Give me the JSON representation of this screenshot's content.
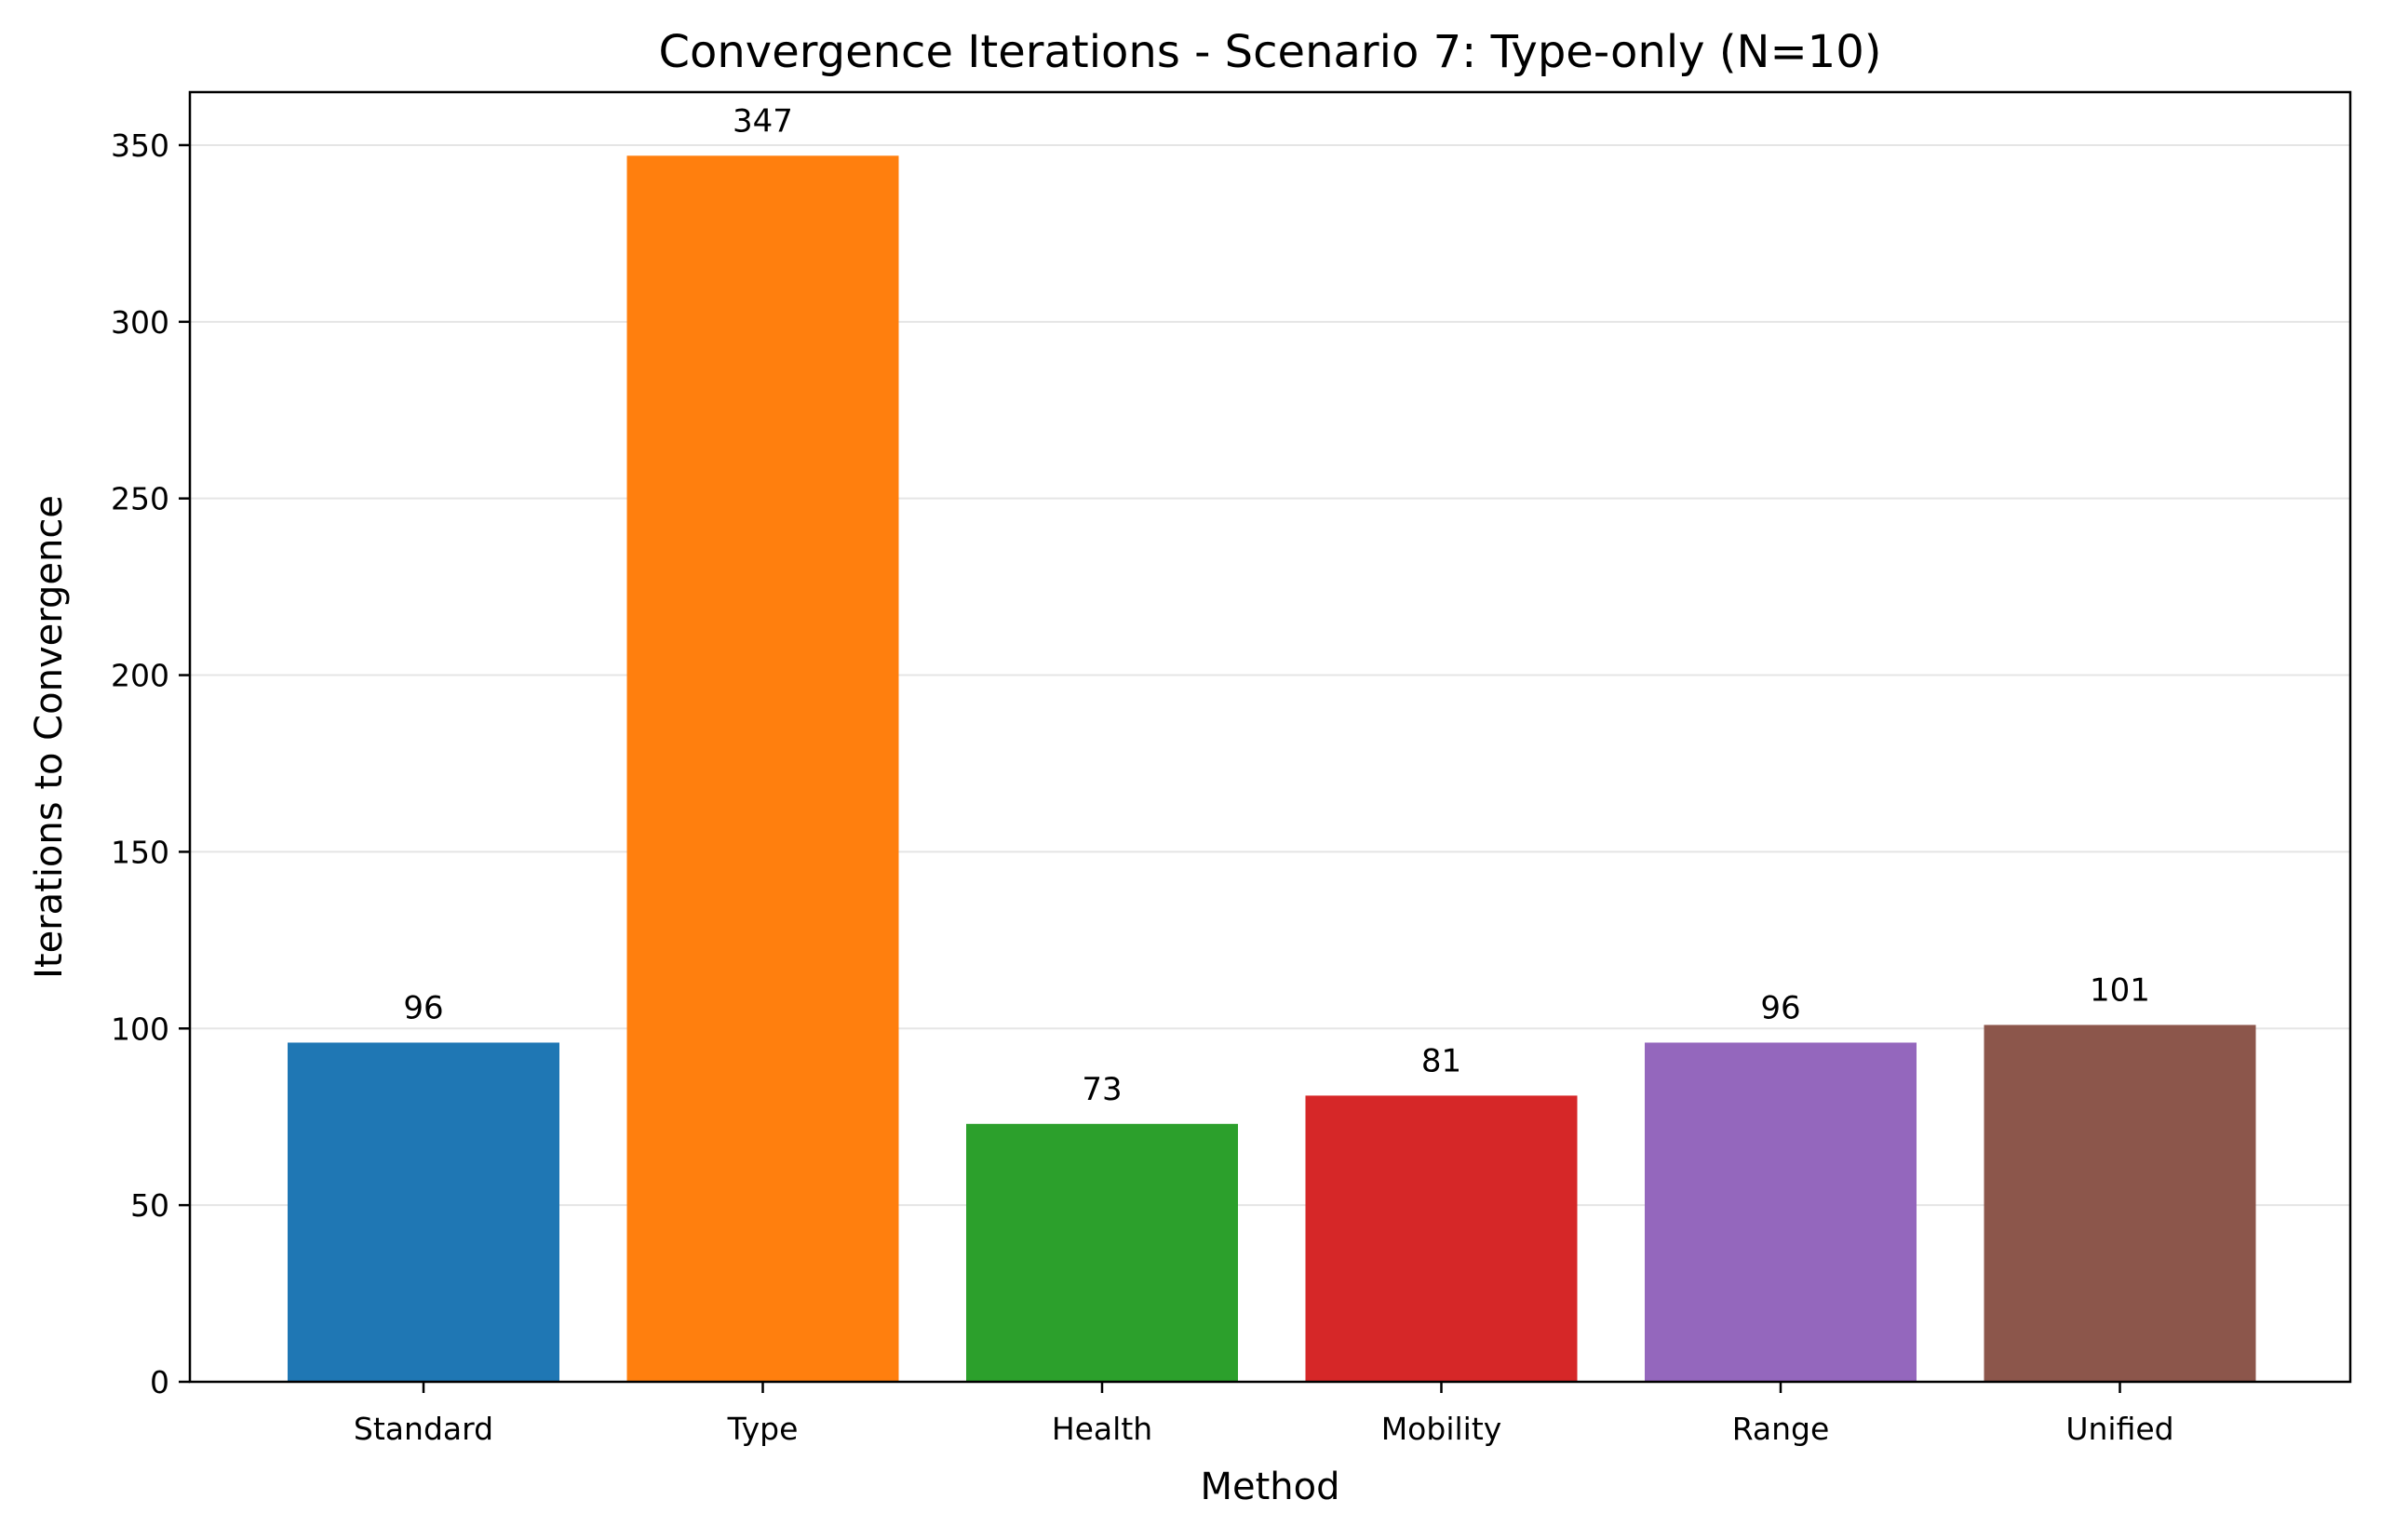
{
  "chart_data": {
    "type": "bar",
    "title": "Convergence Iterations - Scenario 7: Type-only (N=10)",
    "xlabel": "Method",
    "ylabel": "Iterations to Convergence",
    "categories": [
      "Standard",
      "Type",
      "Health",
      "Mobility",
      "Range",
      "Unified"
    ],
    "values": [
      96,
      347,
      73,
      81,
      96,
      101
    ],
    "data_labels": [
      "96",
      "347",
      "73",
      "81",
      "96",
      "101"
    ],
    "colors": [
      "#1f77b4",
      "#ff7f0e",
      "#2ca02c",
      "#d62728",
      "#9467bd",
      "#8c564b"
    ],
    "ylim": [
      0,
      365
    ],
    "yticks": [
      0,
      50,
      100,
      150,
      200,
      250,
      300,
      350
    ],
    "ytick_labels": [
      "0",
      "50",
      "100",
      "150",
      "200",
      "250",
      "300",
      "350"
    ],
    "grid": "horizontal",
    "legend": "none"
  }
}
